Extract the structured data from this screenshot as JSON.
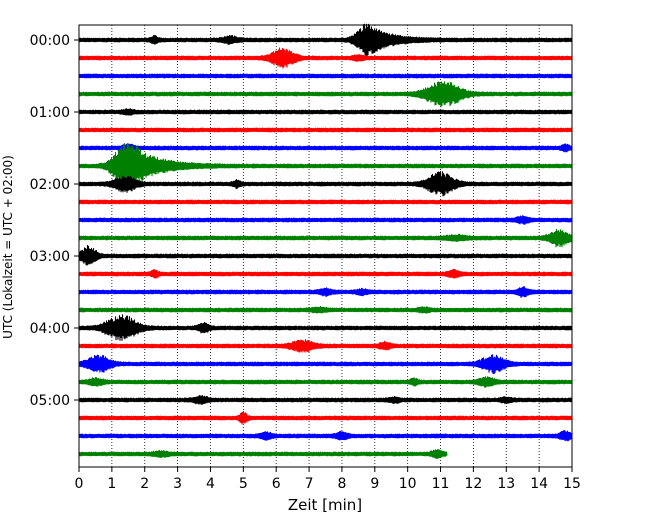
{
  "chart_data": {
    "type": "line",
    "title": "",
    "xlabel": "Zeit  [min]",
    "ylabel": "UTC (Lokalzeit = UTC + 02:00)",
    "xlim": [
      0,
      15
    ],
    "x_ticks": [
      0,
      1,
      2,
      3,
      4,
      5,
      6,
      7,
      8,
      9,
      10,
      11,
      12,
      13,
      14,
      15
    ],
    "x_tick_labels": [
      "0",
      "1",
      "2",
      "3",
      "4",
      "5",
      "6",
      "7",
      "8",
      "9",
      "10",
      "11",
      "12",
      "13",
      "14",
      "15"
    ],
    "y_tick_labels": [
      "00:00",
      "01:00",
      "02:00",
      "03:00",
      "04:00",
      "05:00"
    ],
    "grid": "vertical dotted",
    "trace_count": 24,
    "trace_colors": [
      "#000000",
      "#ff0000",
      "#0000ff",
      "#008000"
    ],
    "last_trace_end_min": 11.2,
    "events": [
      {
        "trace": 0,
        "t": 8.8,
        "amp": 16,
        "dur": 0.9,
        "big": true
      },
      {
        "trace": 0,
        "t": 4.6,
        "amp": 3,
        "dur": 0.4
      },
      {
        "trace": 0,
        "t": 2.3,
        "amp": 3,
        "dur": 0.2
      },
      {
        "trace": 1,
        "t": 6.2,
        "amp": 9,
        "dur": 0.6
      },
      {
        "trace": 1,
        "t": 8.5,
        "amp": 2,
        "dur": 0.3
      },
      {
        "trace": 3,
        "t": 11.1,
        "amp": 12,
        "dur": 0.9
      },
      {
        "trace": 4,
        "t": 1.5,
        "amp": 2,
        "dur": 0.3
      },
      {
        "trace": 6,
        "t": 1.5,
        "amp": 3,
        "dur": 0.3
      },
      {
        "trace": 6,
        "t": 14.8,
        "amp": 3,
        "dur": 0.2
      },
      {
        "trace": 7,
        "t": 1.5,
        "amp": 26,
        "dur": 1.1,
        "big": true
      },
      {
        "trace": 8,
        "t": 11.0,
        "amp": 11,
        "dur": 0.7
      },
      {
        "trace": 8,
        "t": 1.4,
        "amp": 7,
        "dur": 0.6
      },
      {
        "trace": 8,
        "t": 4.8,
        "amp": 3,
        "dur": 0.2
      },
      {
        "trace": 10,
        "t": 13.5,
        "amp": 3,
        "dur": 0.3
      },
      {
        "trace": 11,
        "t": 14.6,
        "amp": 8,
        "dur": 0.5
      },
      {
        "trace": 11,
        "t": 11.5,
        "amp": 2,
        "dur": 0.6
      },
      {
        "trace": 12,
        "t": 0.3,
        "amp": 9,
        "dur": 0.4
      },
      {
        "trace": 13,
        "t": 2.3,
        "amp": 3,
        "dur": 0.2
      },
      {
        "trace": 13,
        "t": 11.4,
        "amp": 3,
        "dur": 0.3
      },
      {
        "trace": 14,
        "t": 7.5,
        "amp": 3,
        "dur": 0.3
      },
      {
        "trace": 14,
        "t": 8.6,
        "amp": 2,
        "dur": 0.3
      },
      {
        "trace": 14,
        "t": 13.5,
        "amp": 4,
        "dur": 0.3
      },
      {
        "trace": 15,
        "t": 7.3,
        "amp": 2,
        "dur": 0.4
      },
      {
        "trace": 15,
        "t": 10.5,
        "amp": 2,
        "dur": 0.3
      },
      {
        "trace": 16,
        "t": 1.3,
        "amp": 12,
        "dur": 0.8
      },
      {
        "trace": 16,
        "t": 3.8,
        "amp": 4,
        "dur": 0.3
      },
      {
        "trace": 17,
        "t": 6.8,
        "amp": 5,
        "dur": 0.6
      },
      {
        "trace": 17,
        "t": 9.3,
        "amp": 3,
        "dur": 0.3
      },
      {
        "trace": 18,
        "t": 0.6,
        "amp": 8,
        "dur": 0.6
      },
      {
        "trace": 18,
        "t": 12.6,
        "amp": 8,
        "dur": 0.6
      },
      {
        "trace": 19,
        "t": 0.5,
        "amp": 3,
        "dur": 0.4
      },
      {
        "trace": 19,
        "t": 12.4,
        "amp": 4,
        "dur": 0.4
      },
      {
        "trace": 19,
        "t": 10.2,
        "amp": 3,
        "dur": 0.2
      },
      {
        "trace": 20,
        "t": 3.7,
        "amp": 3,
        "dur": 0.4
      },
      {
        "trace": 20,
        "t": 9.6,
        "amp": 2,
        "dur": 0.3
      },
      {
        "trace": 20,
        "t": 13.0,
        "amp": 2,
        "dur": 0.3
      },
      {
        "trace": 21,
        "t": 5.0,
        "amp": 5,
        "dur": 0.2
      },
      {
        "trace": 22,
        "t": 5.7,
        "amp": 3,
        "dur": 0.3
      },
      {
        "trace": 22,
        "t": 8.0,
        "amp": 3,
        "dur": 0.3
      },
      {
        "trace": 22,
        "t": 14.8,
        "amp": 4,
        "dur": 0.3
      },
      {
        "trace": 23,
        "t": 2.5,
        "amp": 2,
        "dur": 0.4
      },
      {
        "trace": 23,
        "t": 10.9,
        "amp": 3,
        "dur": 0.3
      }
    ]
  }
}
